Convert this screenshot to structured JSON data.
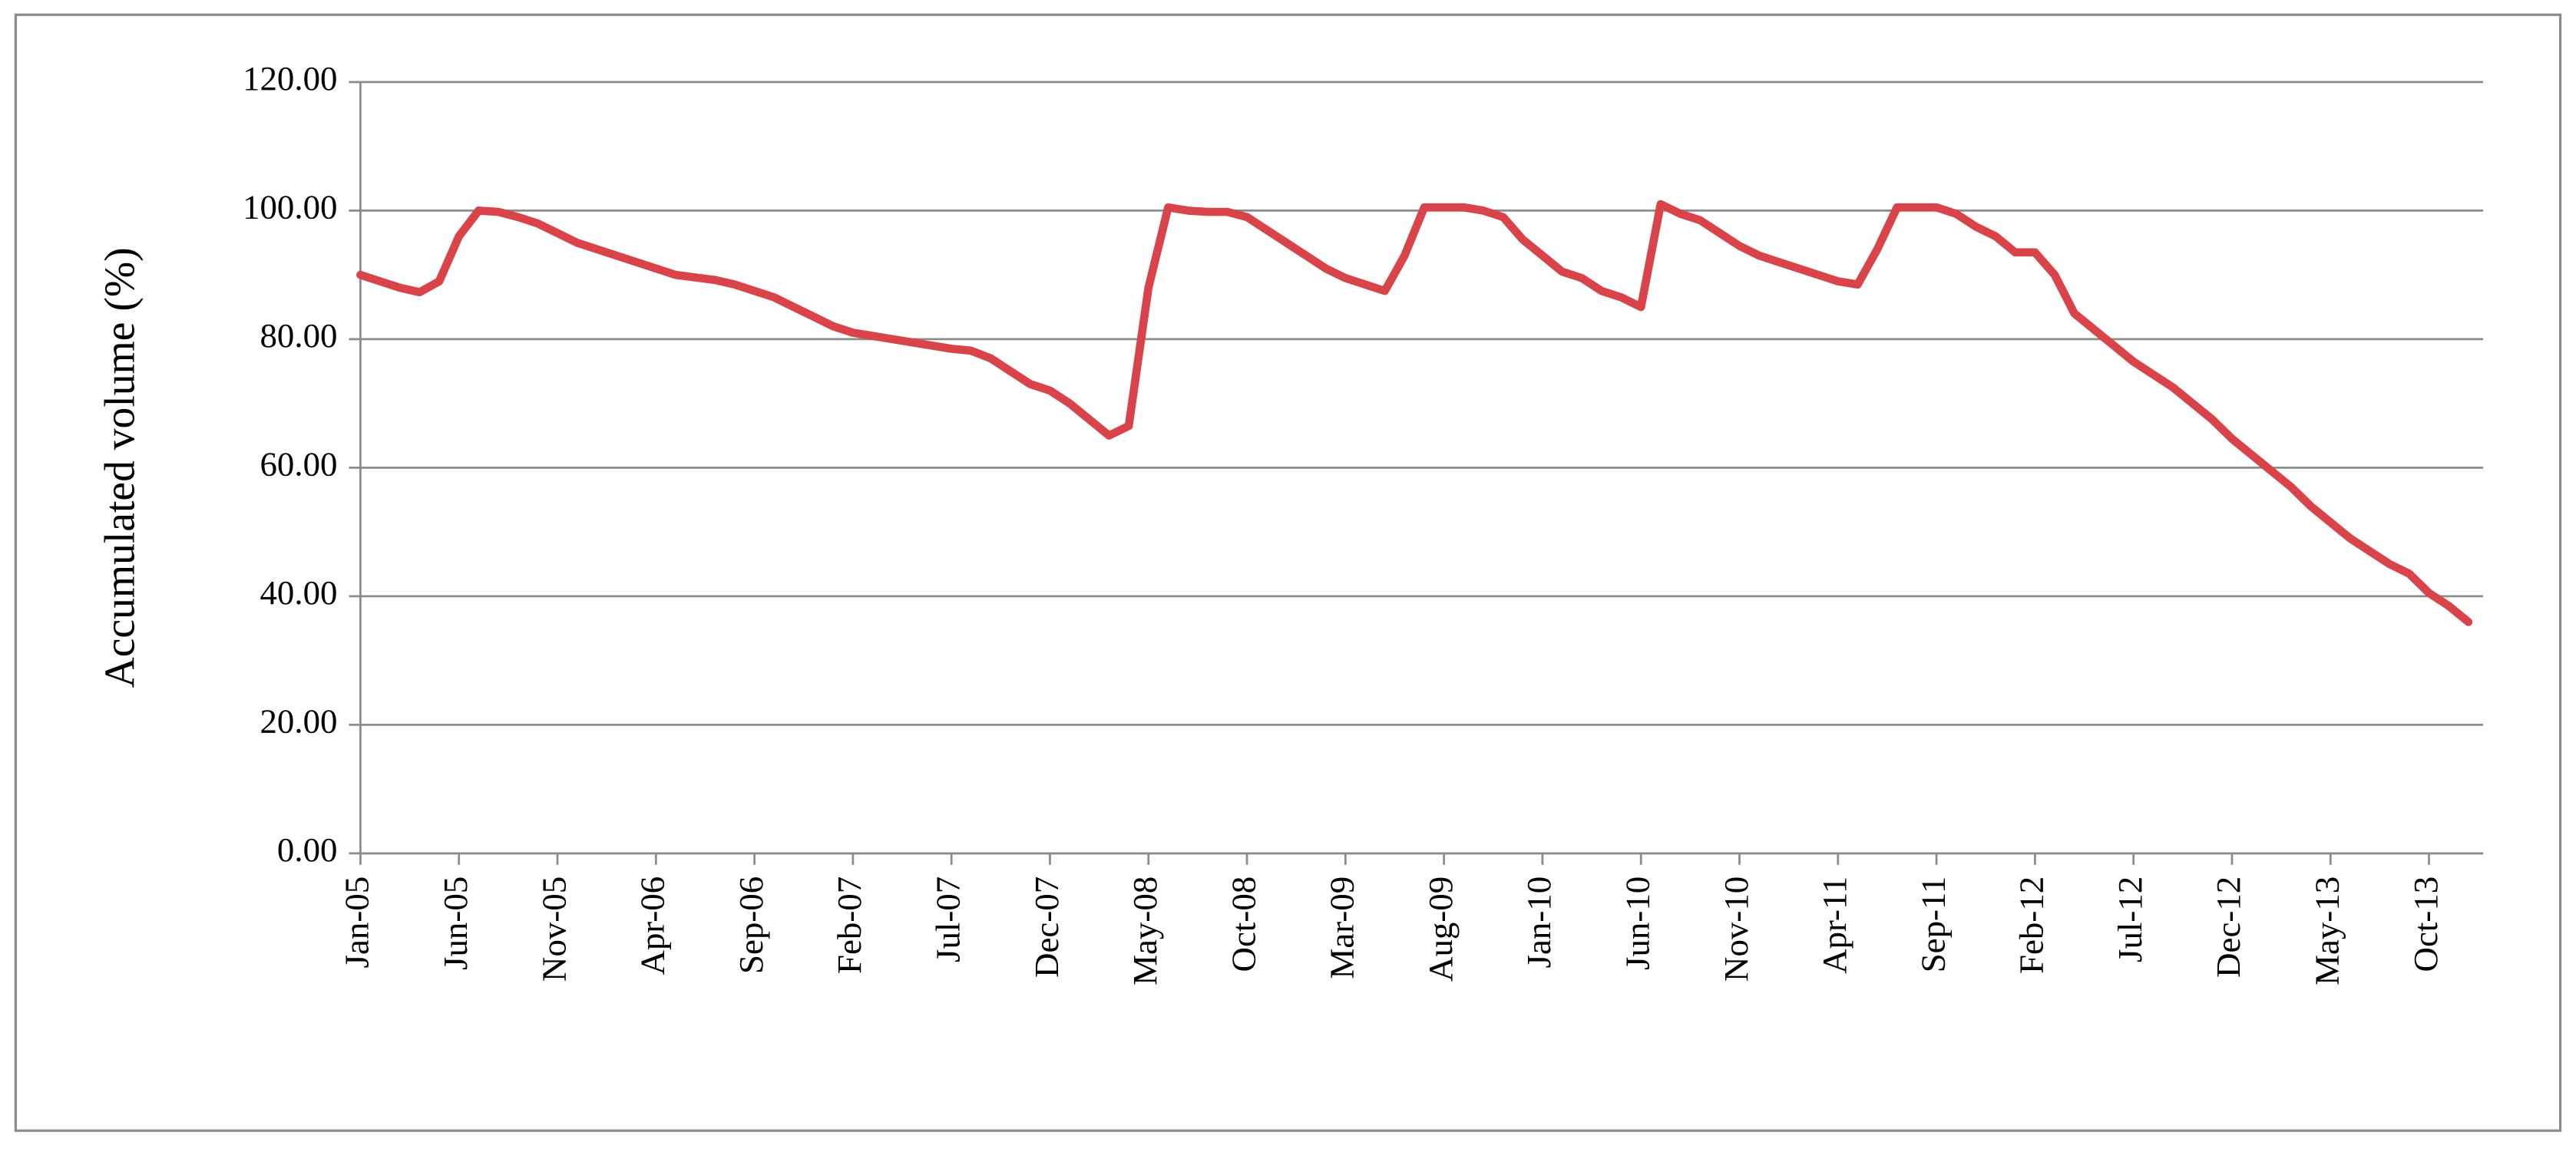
{
  "chart_data": {
    "type": "line",
    "y_label": "Accumulated volume (%)",
    "categories": [
      "Jan-05",
      null,
      null,
      null,
      null,
      "Jun-05",
      null,
      null,
      null,
      null,
      "Nov-05",
      null,
      null,
      null,
      null,
      "Apr-06",
      null,
      null,
      null,
      null,
      "Sep-06",
      null,
      null,
      null,
      null,
      "Feb-07",
      null,
      null,
      null,
      null,
      "Jul-07",
      null,
      null,
      null,
      null,
      "Dec-07",
      null,
      null,
      null,
      null,
      "May-08",
      null,
      null,
      null,
      null,
      "Oct-08",
      null,
      null,
      null,
      null,
      "Mar-09",
      null,
      null,
      null,
      null,
      "Aug-09",
      null,
      null,
      null,
      null,
      "Jan-10",
      null,
      null,
      null,
      null,
      "Jun-10",
      null,
      null,
      null,
      null,
      "Nov-10",
      null,
      null,
      null,
      null,
      "Apr-11",
      null,
      null,
      null,
      null,
      "Sep-11",
      null,
      null,
      null,
      null,
      "Feb-12",
      null,
      null,
      null,
      null,
      "Jul-12",
      null,
      null,
      null,
      null,
      "Dec-12",
      null,
      null,
      null,
      null,
      "May-13",
      null,
      null,
      null,
      null,
      "Oct-13",
      null,
      null
    ],
    "series": [
      {
        "name": "Accumulated volume",
        "color": "#d9434a",
        "values": [
          90,
          89,
          88,
          87.3,
          89,
          96,
          100,
          99.8,
          99,
          98,
          96.5,
          95,
          94,
          93,
          92,
          91,
          90,
          89.6,
          89.2,
          88.5,
          87.5,
          86.5,
          85,
          83.5,
          82,
          81,
          80.5,
          80,
          79.5,
          79,
          78.5,
          78.2,
          77,
          75,
          73,
          72,
          70,
          67.5,
          65,
          66.5,
          88,
          100.5,
          100,
          99.8,
          99.8,
          99,
          97,
          95,
          93,
          91,
          89.5,
          88.5,
          87.5,
          93,
          100.5,
          100.5,
          100.5,
          100,
          99,
          95.5,
          93,
          90.5,
          89.5,
          87.5,
          86.5,
          85,
          101,
          99.5,
          98.5,
          96.5,
          94.5,
          93,
          92,
          91,
          90,
          89,
          88.5,
          94,
          100.5,
          100.5,
          100.5,
          99.5,
          97.5,
          96,
          93.5,
          93.5,
          90,
          84,
          81.5,
          79,
          76.5,
          74.5,
          72.5,
          70,
          67.5,
          64.5,
          62,
          59.5,
          57,
          54,
          51.5,
          49,
          47,
          45,
          43.5,
          40.5,
          38.5,
          36
        ]
      }
    ],
    "ylim": [
      0,
      120
    ],
    "yticks": [
      {
        "value": 0,
        "label": "0.00"
      },
      {
        "value": 20,
        "label": "20.00"
      },
      {
        "value": 40,
        "label": "40.00"
      },
      {
        "value": 60,
        "label": "60.00"
      },
      {
        "value": 80,
        "label": "80.00"
      },
      {
        "value": 100,
        "label": "100.00"
      },
      {
        "value": 120,
        "label": "120.00"
      }
    ],
    "grid": true
  }
}
